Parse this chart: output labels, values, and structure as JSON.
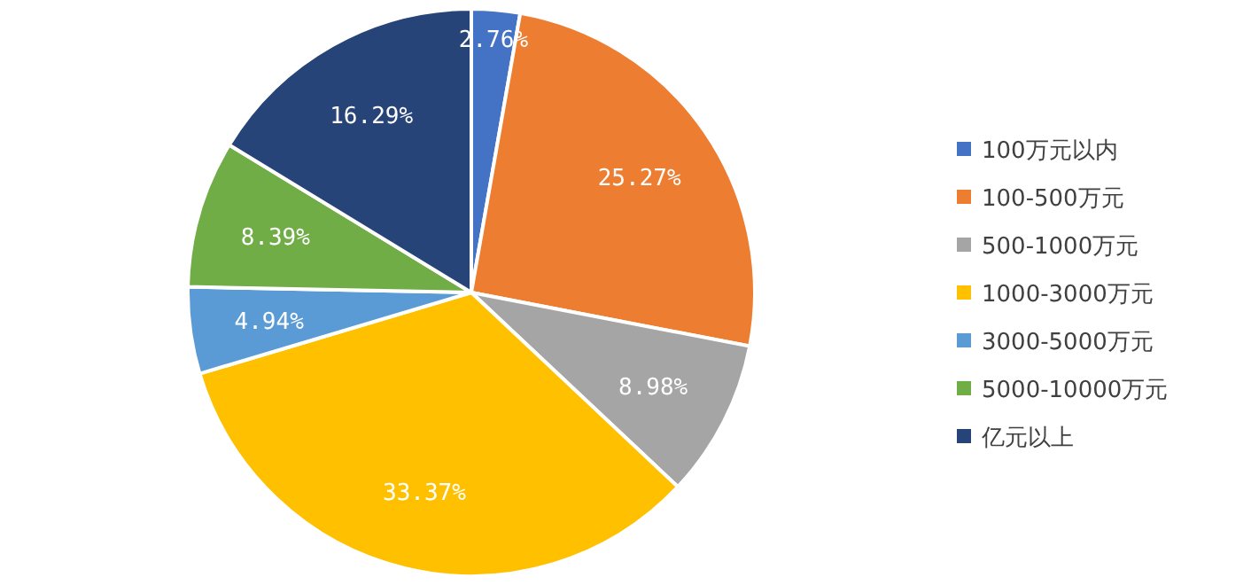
{
  "chart_data": {
    "type": "pie",
    "categories": [
      "100万元以内",
      "100-500万元",
      "500-1000万元",
      "1000-3000万元",
      "3000-5000万元",
      "5000-10000万元",
      "亿元以上"
    ],
    "values": [
      2.76,
      25.27,
      8.98,
      33.37,
      4.94,
      8.39,
      16.29
    ],
    "value_labels": [
      "2.76%",
      "25.27%",
      "8.98%",
      "33.37%",
      "4.94%",
      "8.39%",
      "16.29%"
    ],
    "colors": [
      "#4472c4",
      "#ed7d31",
      "#a5a5a5",
      "#ffc000",
      "#5b9bd5",
      "#70ad47",
      "#264478"
    ],
    "legend": "right"
  }
}
